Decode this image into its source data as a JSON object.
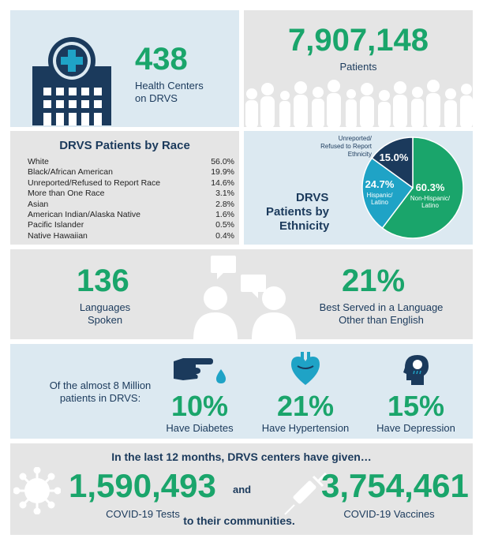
{
  "health_centers": {
    "value": "438",
    "label_line1": "Health Centers",
    "label_line2": "on DRVS"
  },
  "patients": {
    "value": "7,907,148",
    "label": "Patients"
  },
  "race": {
    "title": "DRVS Patients by Race",
    "rows": [
      {
        "label": "White",
        "value": "56.0%"
      },
      {
        "label": "Black/African American",
        "value": "19.9%"
      },
      {
        "label": "Unreported/Refused to Report Race",
        "value": "14.6%"
      },
      {
        "label": "More than One Race",
        "value": "3.1%"
      },
      {
        "label": "Asian",
        "value": "2.8%"
      },
      {
        "label": "American Indian/Alaska Native",
        "value": "1.6%"
      },
      {
        "label": "Pacific Islander",
        "value": "0.5%"
      },
      {
        "label": "Native Hawaiian",
        "value": "0.4%"
      }
    ]
  },
  "ethnicity": {
    "title_line1": "DRVS",
    "title_line2": "Patients by",
    "title_line3": "Ethnicity",
    "chart_data": {
      "type": "pie",
      "slices": [
        {
          "label_line1": "Non-Hispanic/",
          "label_line2": "Latino",
          "value": 60.3,
          "pct": "60.3%",
          "color": "#1aa56b"
        },
        {
          "label_line1": "Hispanic/",
          "label_line2": "Latino",
          "value": 24.7,
          "pct": "24.7%",
          "color": "#1fa3c6"
        },
        {
          "label_line1": "Unreported/",
          "label_line2": "Refused to Report",
          "label_line3": "Ethnicity",
          "value": 15.0,
          "pct": "15.0%",
          "color": "#1b3a5c"
        }
      ]
    }
  },
  "languages": {
    "value": "136",
    "label_line1": "Languages",
    "label_line2": "Spoken",
    "other_value": "21%",
    "other_line1": "Best Served in a Language",
    "other_line2": "Other than English"
  },
  "conditions": {
    "intro_line1": "Of the almost 8 Million",
    "intro_line2": "patients in DRVS:",
    "items": [
      {
        "value": "10%",
        "label": "Have Diabetes",
        "icon": "diabetes-icon"
      },
      {
        "value": "21%",
        "label": "Have Hypertension",
        "icon": "heart-icon"
      },
      {
        "value": "15%",
        "label": "Have Depression",
        "icon": "depression-icon"
      }
    ]
  },
  "covid": {
    "heading": "In the last 12 months, DRVS centers have given…",
    "tests_value": "1,590,493",
    "tests_label": "COVID-19 Tests",
    "and": "and",
    "vaccines_value": "3,754,461",
    "vaccines_label": "COVID-19 Vaccines",
    "footer": "to their communities."
  },
  "colors": {
    "green": "#1aa56b",
    "navy": "#1b3a5c",
    "teal": "#1fa3c6",
    "panel_blue": "#dce9f1",
    "panel_grey": "#e5e5e5"
  }
}
